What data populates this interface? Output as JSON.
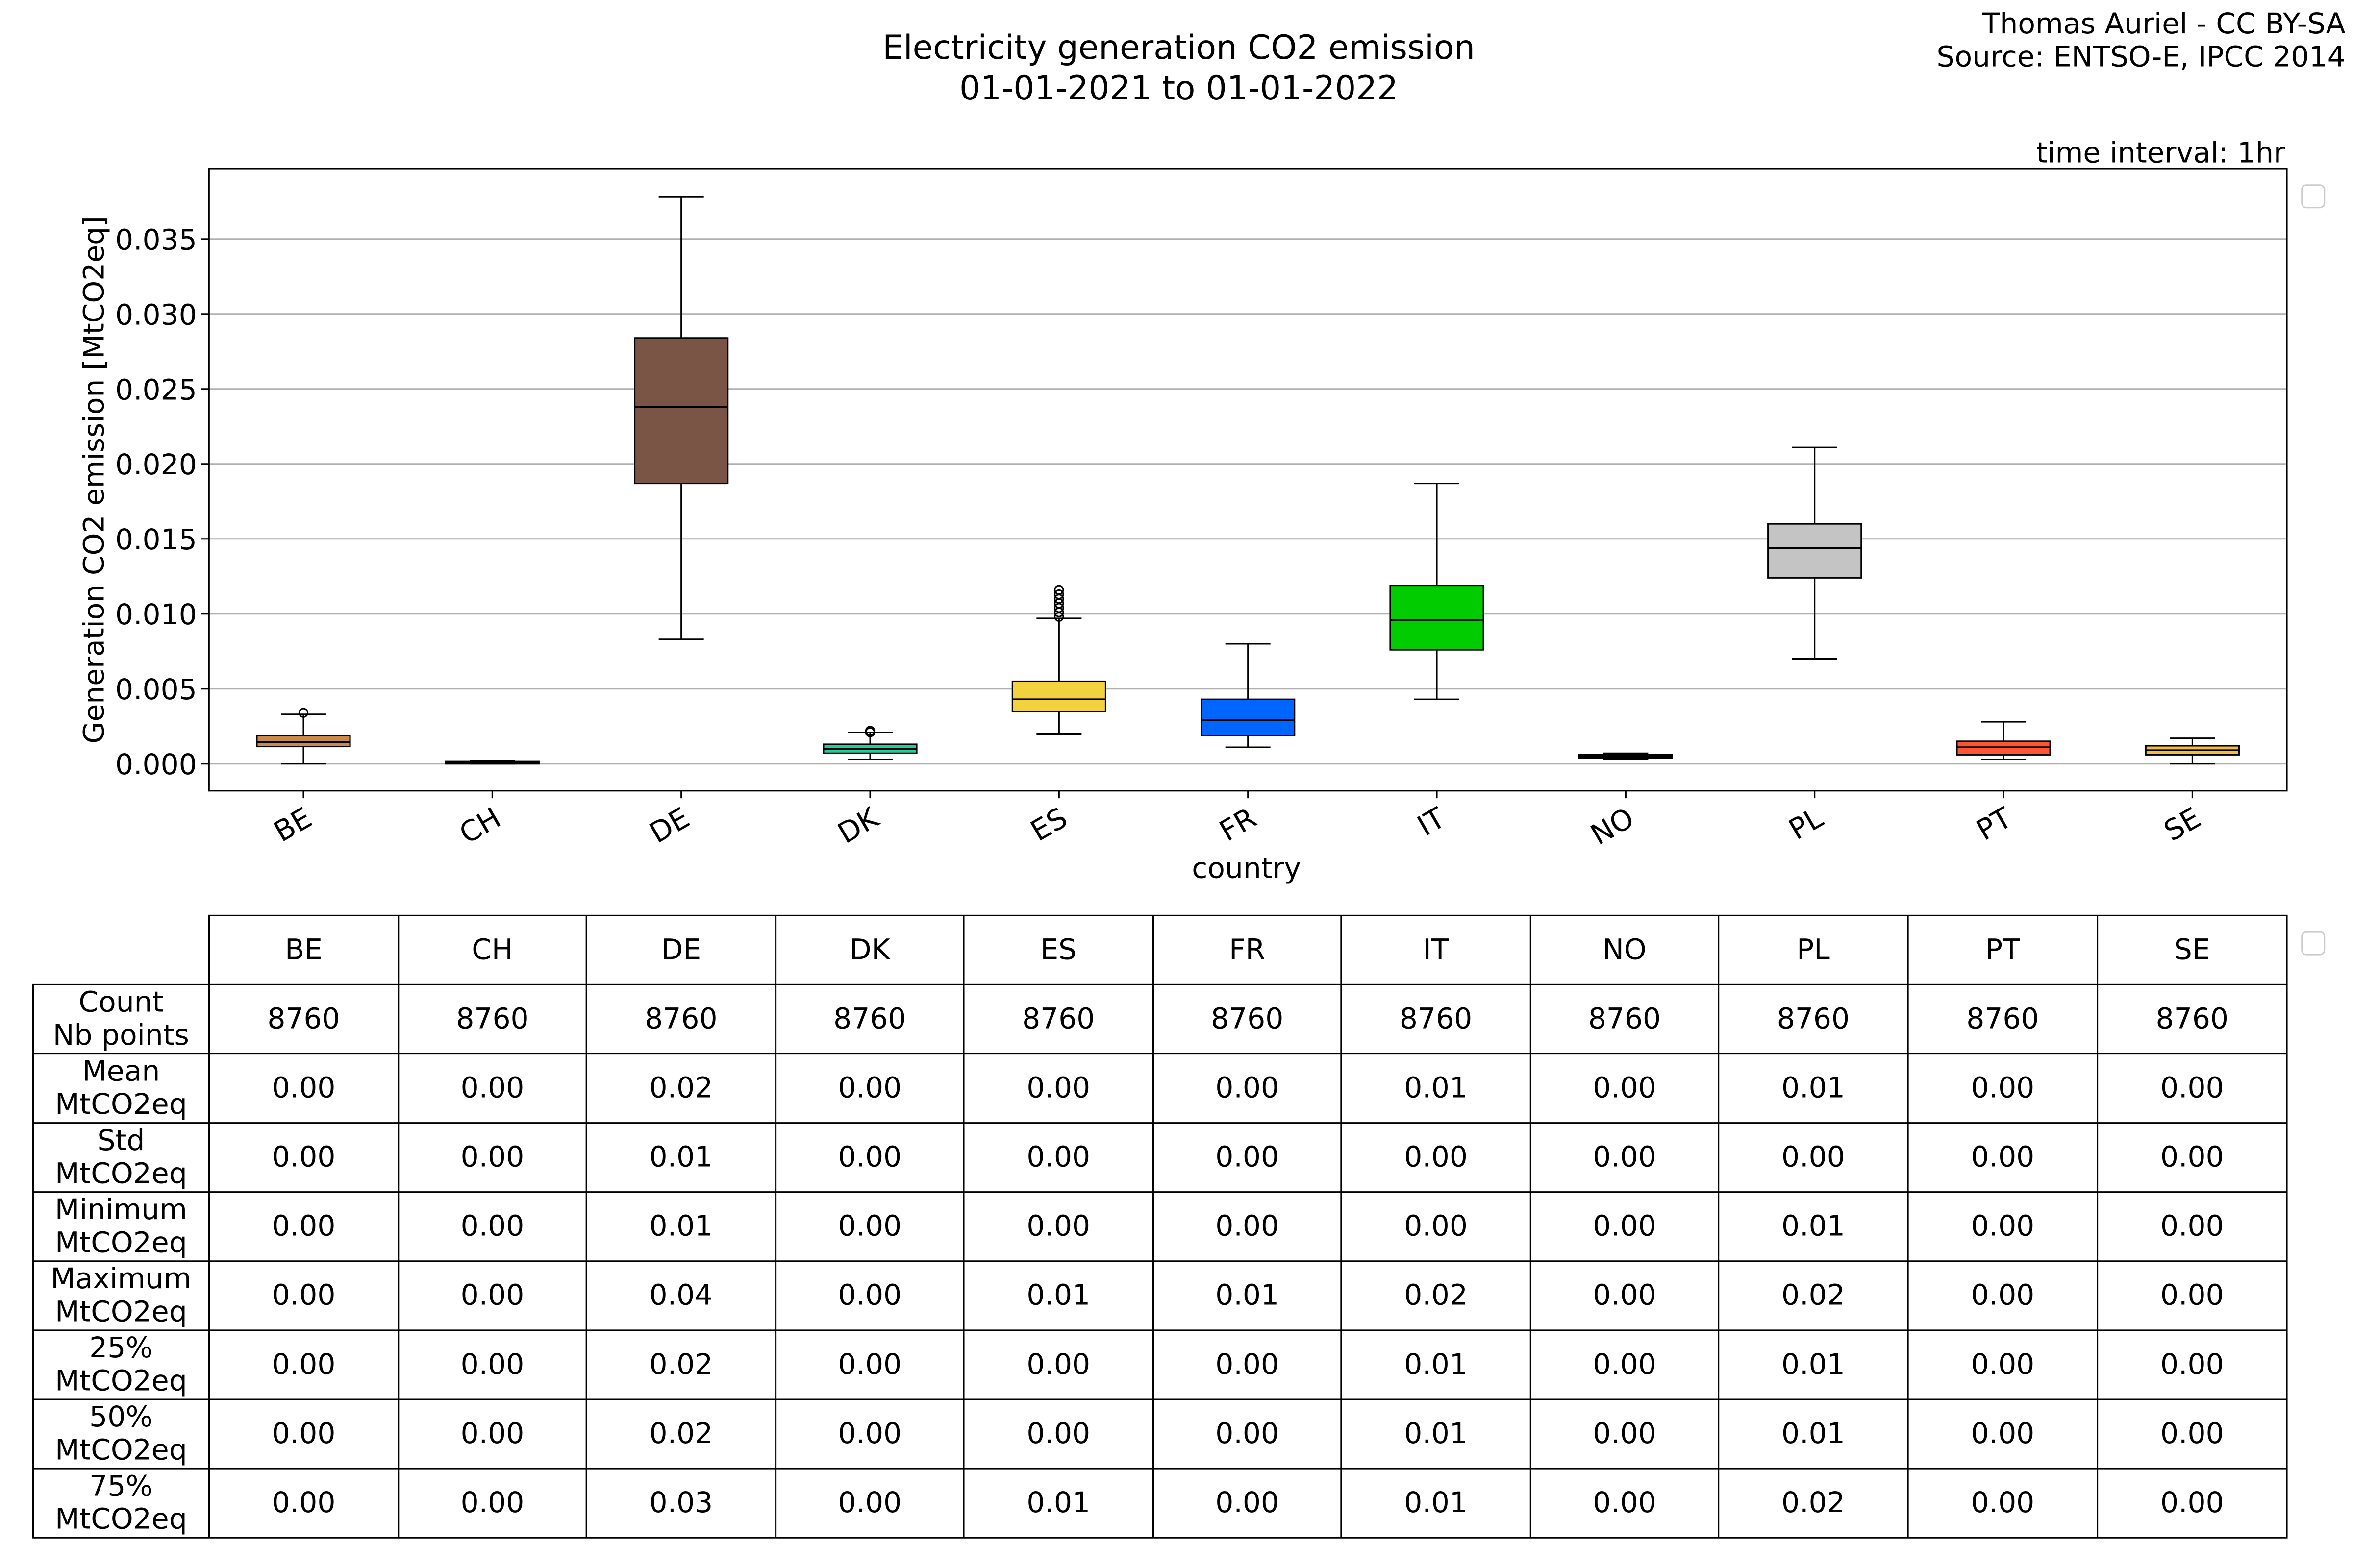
{
  "header": {
    "title_line1": "Electricity generation CO2 emission",
    "title_line2": "01-01-2021 to 01-01-2022",
    "credit_line1": "Thomas Auriel - CC BY-SA",
    "credit_line2": "Source: ENTSO-E, IPCC 2014",
    "time_interval": "time interval: 1hr"
  },
  "chart_data": {
    "type": "box",
    "title": "Electricity generation CO2 emission 01-01-2021 to 01-01-2022",
    "xlabel": "country",
    "ylabel": "Generation CO2 emission [MtCO2eq]",
    "ylim": [
      -0.0018,
      0.0397
    ],
    "yticks": [
      "0.000",
      "0.005",
      "0.010",
      "0.015",
      "0.020",
      "0.025",
      "0.030",
      "0.035"
    ],
    "ytick_values": [
      0,
      0.005,
      0.01,
      0.015,
      0.02,
      0.025,
      0.03,
      0.035
    ],
    "grid": "y",
    "categories": [
      "BE",
      "CH",
      "DE",
      "DK",
      "ES",
      "FR",
      "IT",
      "NO",
      "PL",
      "PT",
      "SE"
    ],
    "boxes": [
      {
        "name": "BE",
        "min": 0.0,
        "q1": 0.00115,
        "median": 0.00145,
        "q3": 0.0019,
        "max": 0.0033,
        "outliers": [
          0.0034
        ],
        "color": "#c98a4b"
      },
      {
        "name": "CH",
        "min": 0.0,
        "q1": 5e-05,
        "median": 0.0001,
        "q3": 0.00015,
        "max": 0.0002,
        "outliers": [],
        "color": "#9b9b9b"
      },
      {
        "name": "DE",
        "min": 0.0083,
        "q1": 0.0187,
        "median": 0.0238,
        "q3": 0.0284,
        "max": 0.0378,
        "outliers": [],
        "color": "#7a5546"
      },
      {
        "name": "DK",
        "min": 0.0003,
        "q1": 0.0007,
        "median": 0.001,
        "q3": 0.0013,
        "max": 0.0021,
        "outliers": [
          0.0021,
          0.0022
        ],
        "color": "#1fcfa0"
      },
      {
        "name": "ES",
        "min": 0.002,
        "q1": 0.0035,
        "median": 0.0043,
        "q3": 0.0055,
        "max": 0.0097,
        "outliers": [
          0.0098,
          0.0101,
          0.0104,
          0.0107,
          0.011,
          0.0113,
          0.0116
        ],
        "color": "#f2d23f"
      },
      {
        "name": "FR",
        "min": 0.0011,
        "q1": 0.0019,
        "median": 0.0029,
        "q3": 0.0043,
        "max": 0.008,
        "outliers": [],
        "color": "#0066ff"
      },
      {
        "name": "IT",
        "min": 0.0043,
        "q1": 0.0076,
        "median": 0.0096,
        "q3": 0.0119,
        "max": 0.0187,
        "outliers": [],
        "color": "#00cc00"
      },
      {
        "name": "NO",
        "min": 0.0003,
        "q1": 0.0004,
        "median": 0.0005,
        "q3": 0.0006,
        "max": 0.0007,
        "outliers": [],
        "color": "#3b82d6"
      },
      {
        "name": "PL",
        "min": 0.007,
        "q1": 0.0124,
        "median": 0.0144,
        "q3": 0.016,
        "max": 0.0211,
        "outliers": [],
        "color": "#c4c4c4"
      },
      {
        "name": "PT",
        "min": 0.0003,
        "q1": 0.0006,
        "median": 0.0011,
        "q3": 0.0015,
        "max": 0.0028,
        "outliers": [],
        "color": "#ff5533"
      },
      {
        "name": "SE",
        "min": 0.0,
        "q1": 0.0006,
        "median": 0.0009,
        "q3": 0.0012,
        "max": 0.0017,
        "outliers": [],
        "color": "#f6bb44"
      }
    ]
  },
  "table": {
    "columns": [
      "BE",
      "CH",
      "DE",
      "DK",
      "ES",
      "FR",
      "IT",
      "NO",
      "PL",
      "PT",
      "SE"
    ],
    "rows": [
      {
        "label1": "Count",
        "label2": "Nb points",
        "values": [
          "8760",
          "8760",
          "8760",
          "8760",
          "8760",
          "8760",
          "8760",
          "8760",
          "8760",
          "8760",
          "8760"
        ]
      },
      {
        "label1": "Mean",
        "label2": "MtCO2eq",
        "values": [
          "0.00",
          "0.00",
          "0.02",
          "0.00",
          "0.00",
          "0.00",
          "0.01",
          "0.00",
          "0.01",
          "0.00",
          "0.00"
        ]
      },
      {
        "label1": "Std",
        "label2": "MtCO2eq",
        "values": [
          "0.00",
          "0.00",
          "0.01",
          "0.00",
          "0.00",
          "0.00",
          "0.00",
          "0.00",
          "0.00",
          "0.00",
          "0.00"
        ]
      },
      {
        "label1": "Minimum",
        "label2": "MtCO2eq",
        "values": [
          "0.00",
          "0.00",
          "0.01",
          "0.00",
          "0.00",
          "0.00",
          "0.00",
          "0.00",
          "0.01",
          "0.00",
          "0.00"
        ]
      },
      {
        "label1": "Maximum",
        "label2": "MtCO2eq",
        "values": [
          "0.00",
          "0.00",
          "0.04",
          "0.00",
          "0.01",
          "0.01",
          "0.02",
          "0.00",
          "0.02",
          "0.00",
          "0.00"
        ]
      },
      {
        "label1": "25%",
        "label2": "MtCO2eq",
        "values": [
          "0.00",
          "0.00",
          "0.02",
          "0.00",
          "0.00",
          "0.00",
          "0.01",
          "0.00",
          "0.01",
          "0.00",
          "0.00"
        ]
      },
      {
        "label1": "50%",
        "label2": "MtCO2eq",
        "values": [
          "0.00",
          "0.00",
          "0.02",
          "0.00",
          "0.00",
          "0.00",
          "0.01",
          "0.00",
          "0.01",
          "0.00",
          "0.00"
        ]
      },
      {
        "label1": "75%",
        "label2": "MtCO2eq",
        "values": [
          "0.00",
          "0.00",
          "0.03",
          "0.00",
          "0.01",
          "0.00",
          "0.01",
          "0.00",
          "0.02",
          "0.00",
          "0.00"
        ]
      }
    ]
  }
}
